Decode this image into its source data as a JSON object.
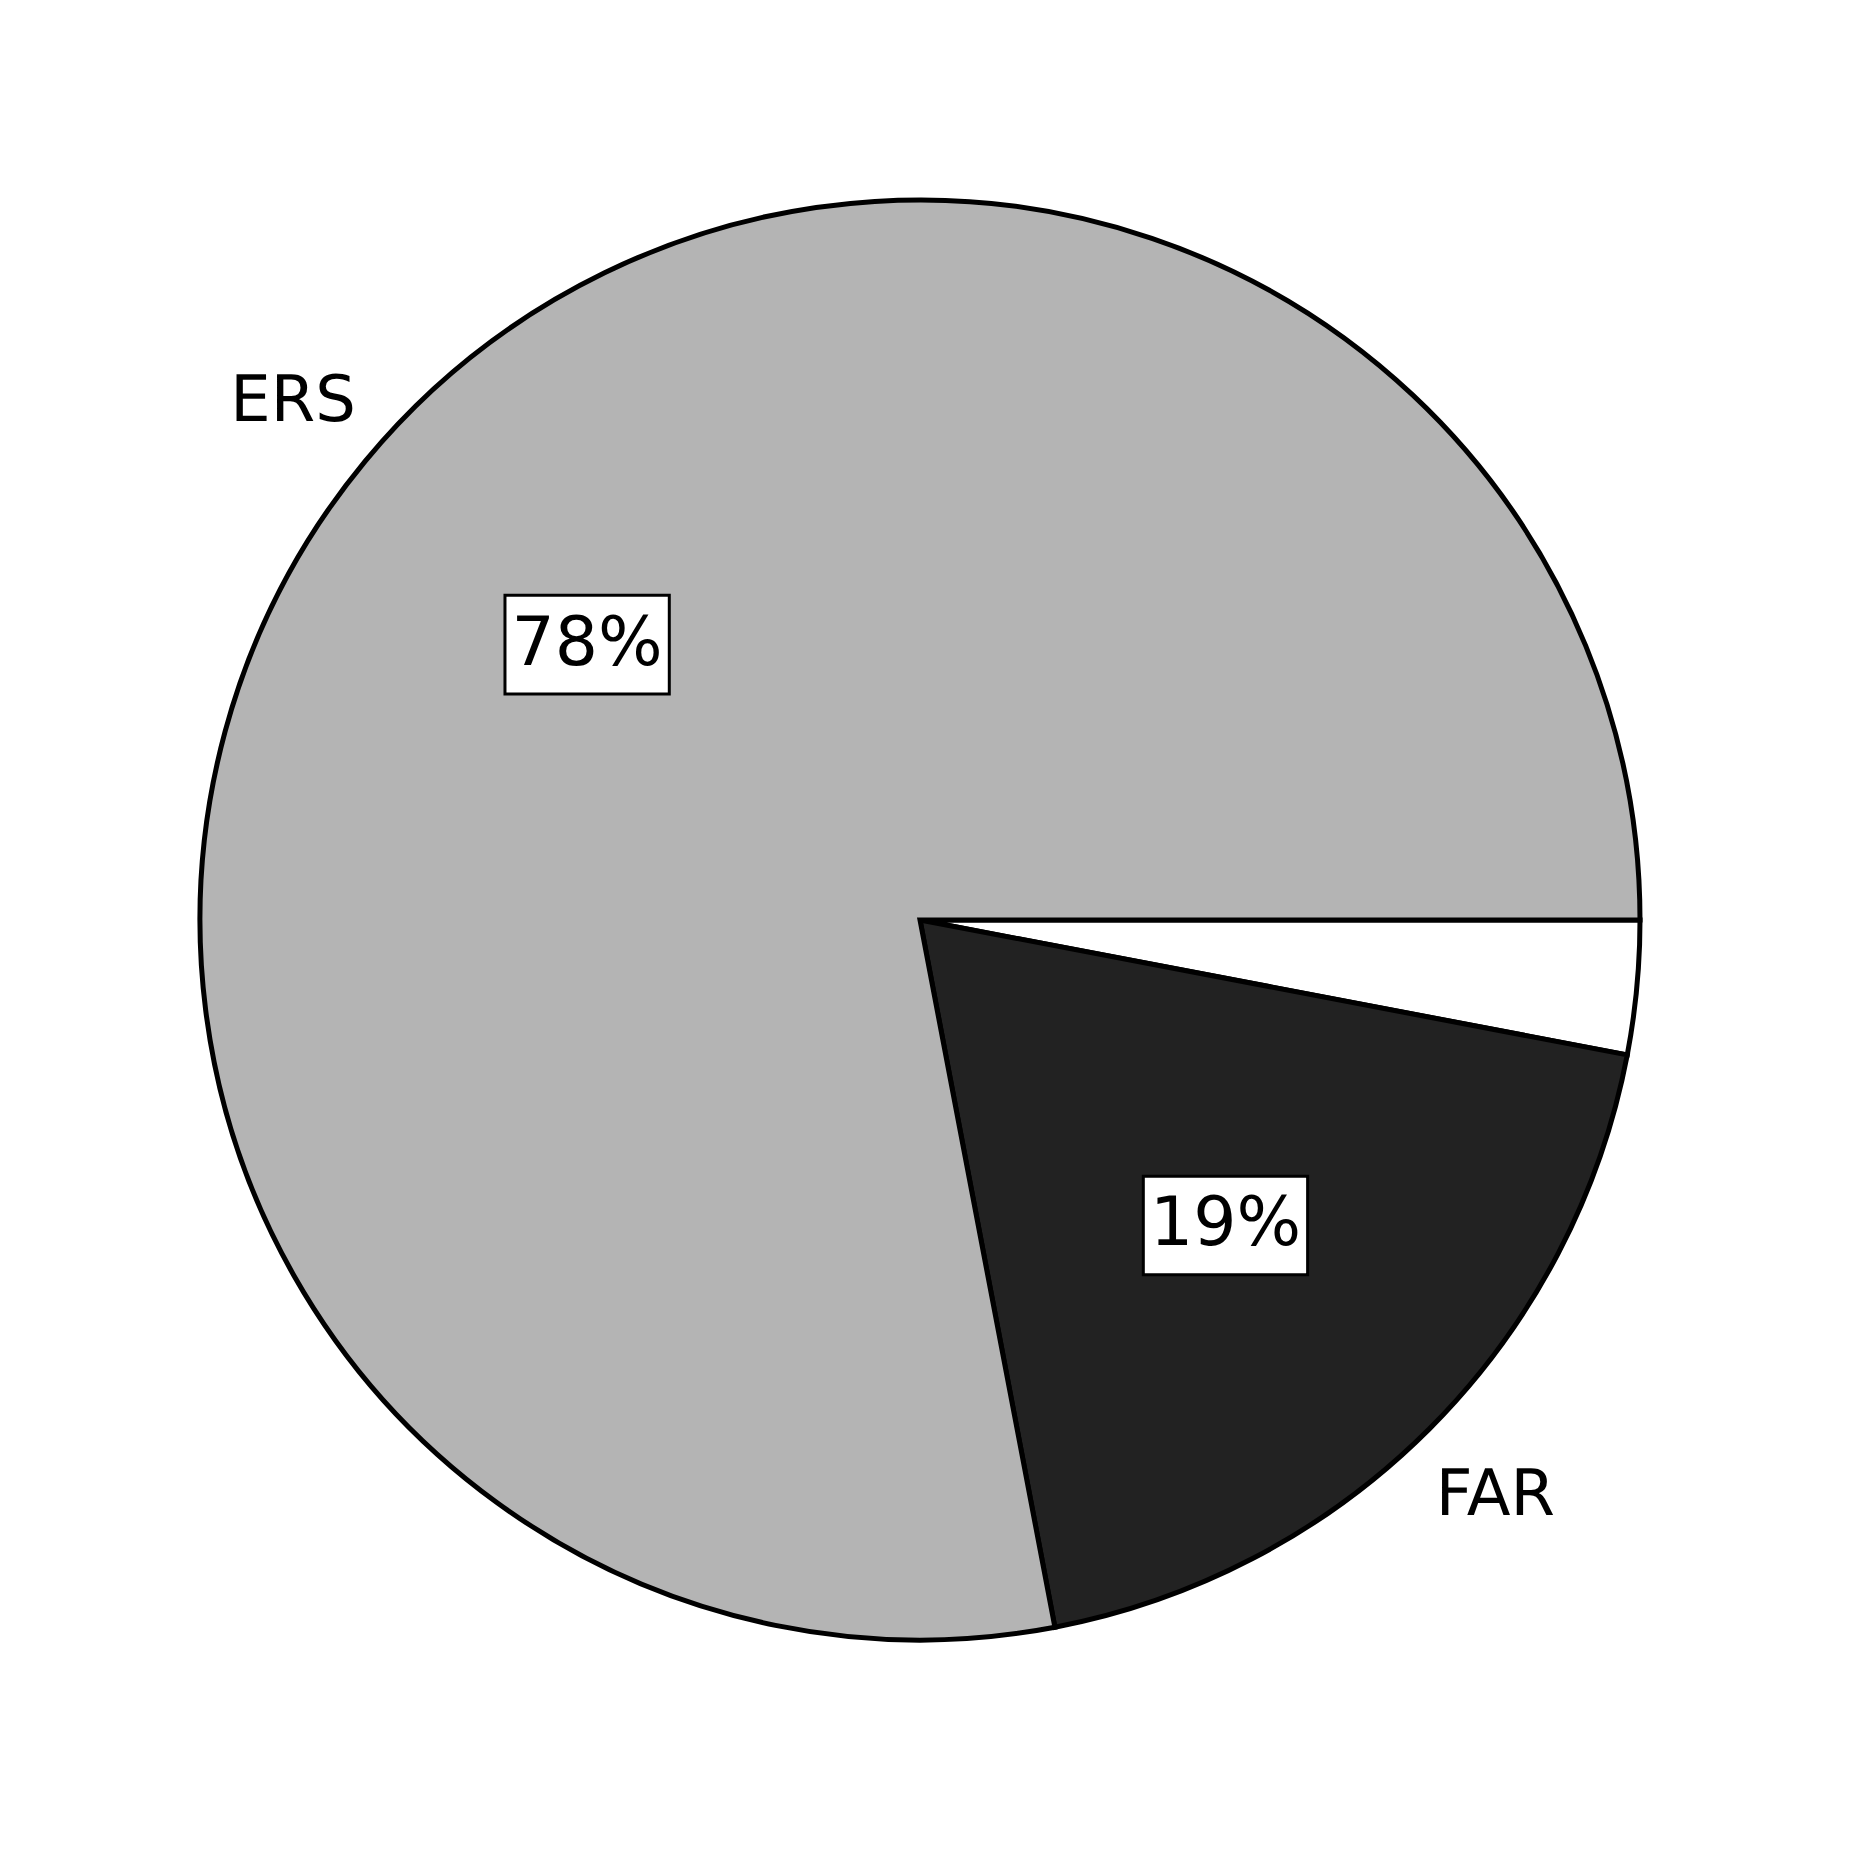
{
  "chart_data": {
    "type": "pie",
    "categories": [
      null,
      "FAR",
      "ERS"
    ],
    "values": [
      3,
      19,
      78
    ],
    "colors": [
      "#ffffff",
      "#222222",
      "#b4b4b4"
    ],
    "value_labels": [
      null,
      "19%",
      "78%"
    ],
    "legend": false
  }
}
